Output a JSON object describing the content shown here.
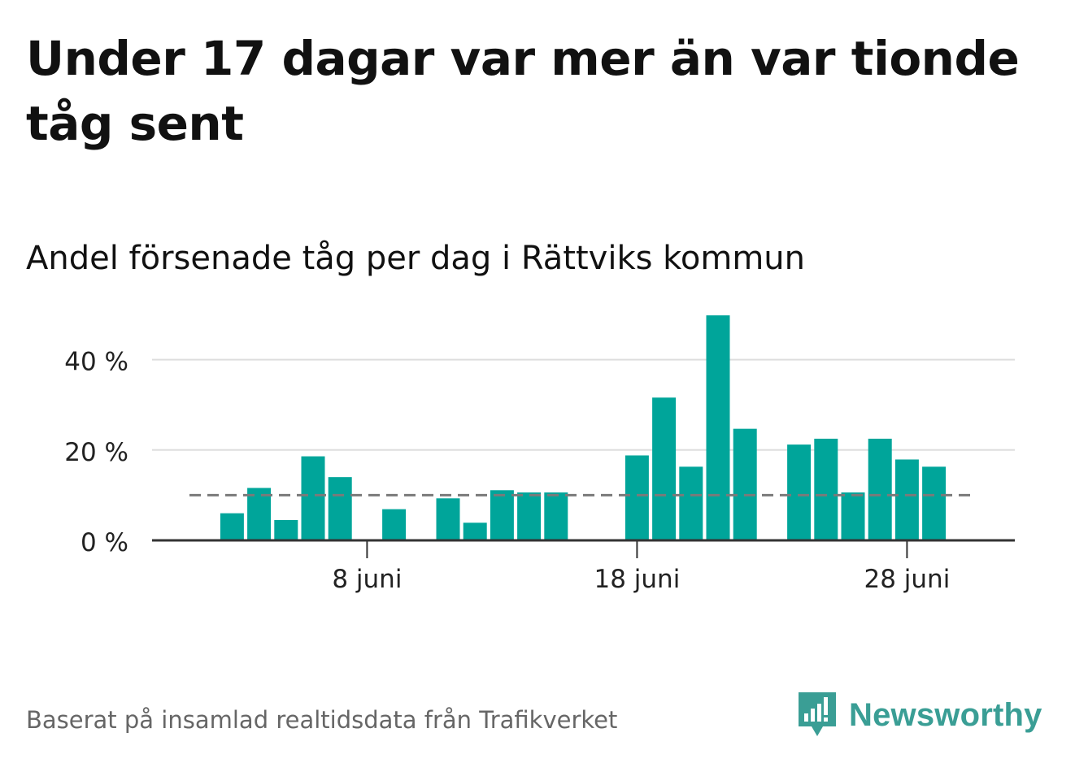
{
  "header": {
    "title": "Under 17 dagar var mer än var tionde tåg sent",
    "subtitle": "Andel försenade tåg per dag i Rättviks kommun"
  },
  "footer": {
    "source": "Baserat på insamlad realtidsdata från Trafikverket",
    "logo_text": "Newsworthy"
  },
  "colors": {
    "bar": "#00a59a",
    "reference_line": "#7a7a7a",
    "grid": "#dddddd",
    "axis": "#333333",
    "logo": "#3a9e95"
  },
  "chart_data": {
    "type": "bar",
    "title": "Andel försenade tåg per dag i Rättviks kommun",
    "xlabel": "",
    "ylabel": "",
    "x_unit": "day of June",
    "categories": [
      1,
      2,
      3,
      4,
      5,
      6,
      7,
      8,
      9,
      10,
      11,
      12,
      13,
      14,
      15,
      16,
      17,
      18,
      19,
      20,
      21,
      22,
      23,
      24,
      25,
      26,
      27,
      28,
      29,
      30
    ],
    "values": [
      null,
      null,
      6,
      11.6,
      4.5,
      18.6,
      14,
      null,
      6.9,
      null,
      9.3,
      3.9,
      11.1,
      10.6,
      10.6,
      null,
      null,
      18.8,
      31.6,
      16.3,
      49.8,
      24.7,
      null,
      21.2,
      22.5,
      10.6,
      22.5,
      17.9,
      16.3,
      null
    ],
    "reference_line": 10,
    "ylim": [
      0,
      50
    ],
    "y_ticks": [
      0,
      20,
      40
    ],
    "y_tick_labels": [
      "0 %",
      "20 %",
      "40 %"
    ],
    "x_ticks": [
      8,
      18,
      28
    ],
    "x_tick_labels": [
      "8 juni",
      "18 juni",
      "28 juni"
    ],
    "grid": true
  }
}
